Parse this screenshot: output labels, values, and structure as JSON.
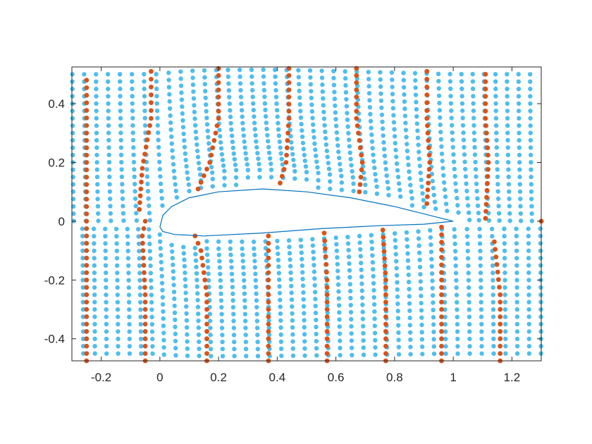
{
  "chart_data": {
    "type": "scatter",
    "title": "",
    "xlabel": "",
    "ylabel": "",
    "xlim": [
      -0.3,
      1.3
    ],
    "ylim": [
      -0.475,
      0.525
    ],
    "xticks": [
      -0.2,
      0,
      0.2,
      0.4,
      0.6,
      0.8,
      1,
      1.2
    ],
    "xtick_labels": [
      "-0.2",
      "0",
      "0.2",
      "0.4",
      "0.6",
      "0.8",
      "1",
      "1.2"
    ],
    "yticks": [
      -0.4,
      -0.2,
      0,
      0.2,
      0.4
    ],
    "ytick_labels": [
      "-0.4",
      "-0.2",
      "0",
      "0.2",
      "0.4"
    ],
    "grid": false,
    "legend": "none",
    "series": [
      {
        "marker": "dot",
        "color": "#4dbeee",
        "description_of_values": "uniform grid of particles advected by flow around airfoil; x spacing 0.04, y spacing 0.025",
        "grid_x_start": -0.3,
        "grid_x_end": 1.3,
        "grid_x_step": 0.04,
        "grid_y_start": -0.475,
        "grid_y_end": 0.525,
        "grid_y_step": 0.025
      },
      {
        "marker": "dot",
        "color": "#d95319",
        "streaklines_lower": [
          [
            [
              -0.25,
              -0.475
            ],
            [
              -0.25,
              -0.3
            ],
            [
              -0.25,
              -0.1
            ],
            [
              -0.25,
              0.1
            ],
            [
              -0.25,
              0.3
            ],
            [
              -0.25,
              0.48
            ]
          ],
          [
            [
              -0.05,
              -0.475
            ],
            [
              -0.05,
              -0.25
            ],
            [
              -0.06,
              -0.05
            ],
            [
              -0.05,
              0.0
            ]
          ],
          [
            [
              0.16,
              -0.475
            ],
            [
              0.16,
              -0.25
            ],
            [
              0.14,
              -0.1
            ],
            [
              0.12,
              -0.05
            ]
          ],
          [
            [
              0.37,
              -0.475
            ],
            [
              0.37,
              -0.2
            ],
            [
              0.37,
              -0.05
            ]
          ],
          [
            [
              0.57,
              -0.475
            ],
            [
              0.57,
              -0.2
            ],
            [
              0.56,
              -0.04
            ]
          ],
          [
            [
              0.77,
              -0.475
            ],
            [
              0.77,
              -0.2
            ],
            [
              0.76,
              -0.03
            ]
          ],
          [
            [
              0.96,
              -0.475
            ],
            [
              0.96,
              -0.2
            ],
            [
              0.96,
              -0.02
            ]
          ],
          [
            [
              1.16,
              -0.475
            ],
            [
              1.16,
              -0.25
            ],
            [
              1.14,
              -0.07
            ]
          ]
        ],
        "streaklines_upper": [
          [
            [
              -0.03,
              0.51
            ],
            [
              -0.03,
              0.35
            ],
            [
              -0.06,
              0.18
            ],
            [
              -0.07,
              0.04
            ]
          ],
          [
            [
              0.2,
              0.52
            ],
            [
              0.2,
              0.35
            ],
            [
              0.17,
              0.2
            ],
            [
              0.13,
              0.11
            ]
          ],
          [
            [
              0.44,
              0.52
            ],
            [
              0.44,
              0.35
            ],
            [
              0.43,
              0.2
            ],
            [
              0.41,
              0.13
            ]
          ],
          [
            [
              0.67,
              0.52
            ],
            [
              0.67,
              0.35
            ],
            [
              0.69,
              0.2
            ],
            [
              0.68,
              0.1
            ]
          ],
          [
            [
              0.91,
              0.51
            ],
            [
              0.91,
              0.35
            ],
            [
              0.92,
              0.2
            ],
            [
              0.91,
              0.06
            ]
          ],
          [
            [
              1.11,
              0.5
            ],
            [
              1.11,
              0.35
            ],
            [
              1.12,
              0.2
            ],
            [
              1.11,
              0.01
            ]
          ],
          [
            [
              1.3,
              0.0
            ],
            [
              1.3,
              0.0
            ]
          ]
        ]
      }
    ],
    "airfoil": {
      "color": "#0072bd",
      "upper": [
        [
          0.0,
          -0.02
        ],
        [
          0.01,
          0.02
        ],
        [
          0.04,
          0.05
        ],
        [
          0.1,
          0.08
        ],
        [
          0.2,
          0.1
        ],
        [
          0.35,
          0.11
        ],
        [
          0.5,
          0.1
        ],
        [
          0.65,
          0.08
        ],
        [
          0.8,
          0.05
        ],
        [
          0.92,
          0.02
        ],
        [
          1.0,
          0.0
        ]
      ],
      "lower": [
        [
          1.0,
          0.0
        ],
        [
          0.9,
          -0.01
        ],
        [
          0.75,
          -0.015
        ],
        [
          0.55,
          -0.025
        ],
        [
          0.35,
          -0.04
        ],
        [
          0.15,
          -0.05
        ],
        [
          0.05,
          -0.045
        ],
        [
          0.01,
          -0.035
        ],
        [
          0.0,
          -0.02
        ]
      ]
    }
  }
}
